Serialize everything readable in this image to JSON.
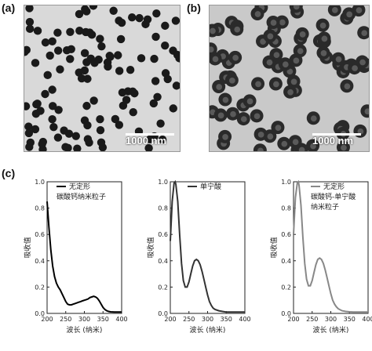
{
  "panels": {
    "a": {
      "label": "(a)",
      "scale_text": "1000 nm"
    },
    "b": {
      "label": "(b)",
      "scale_text": "1000 nm"
    },
    "c": {
      "label": "(c)"
    }
  },
  "chart_data": [
    {
      "type": "line",
      "xlabel": "波长 (纳米)",
      "ylabel": "吸收值",
      "xlim": [
        200,
        400
      ],
      "ylim": [
        0,
        1.0
      ],
      "xticks": [
        200,
        250,
        300,
        350,
        400
      ],
      "yticks": [
        0.0,
        0.2,
        0.4,
        0.6,
        0.8,
        1.0
      ],
      "series": [
        {
          "name": "无定形 碳酸钙纳米粒子",
          "color": "#000000",
          "x": [
            200,
            205,
            210,
            215,
            220,
            225,
            230,
            235,
            240,
            245,
            250,
            255,
            260,
            265,
            270,
            275,
            280,
            285,
            290,
            295,
            300,
            305,
            310,
            315,
            320,
            325,
            330,
            335,
            340,
            345,
            350,
            355,
            360,
            365,
            370,
            380,
            390,
            400
          ],
          "y": [
            0.85,
            0.65,
            0.48,
            0.36,
            0.28,
            0.23,
            0.2,
            0.18,
            0.15,
            0.12,
            0.09,
            0.07,
            0.065,
            0.065,
            0.07,
            0.075,
            0.08,
            0.085,
            0.09,
            0.095,
            0.1,
            0.105,
            0.11,
            0.12,
            0.125,
            0.13,
            0.125,
            0.115,
            0.095,
            0.07,
            0.045,
            0.03,
            0.02,
            0.015,
            0.012,
            0.01,
            0.01,
            0.01
          ]
        }
      ]
    },
    {
      "type": "line",
      "xlabel": "波长 (纳米)",
      "ylabel": "吸收值",
      "xlim": [
        200,
        400
      ],
      "ylim": [
        0,
        1.0
      ],
      "xticks": [
        200,
        250,
        300,
        350,
        400
      ],
      "yticks": [
        0.0,
        0.2,
        0.4,
        0.6,
        0.8,
        1.0
      ],
      "series": [
        {
          "name": "单宁酸",
          "color": "#333333",
          "x": [
            200,
            205,
            210,
            213,
            215,
            220,
            225,
            230,
            235,
            240,
            245,
            250,
            255,
            260,
            265,
            270,
            275,
            280,
            285,
            290,
            295,
            300,
            305,
            310,
            315,
            320,
            330,
            340,
            350,
            360,
            370,
            380,
            390,
            400
          ],
          "y": [
            0.55,
            0.85,
            0.99,
            1.0,
            0.98,
            0.85,
            0.6,
            0.38,
            0.25,
            0.2,
            0.2,
            0.24,
            0.3,
            0.36,
            0.4,
            0.41,
            0.4,
            0.37,
            0.32,
            0.26,
            0.2,
            0.14,
            0.09,
            0.06,
            0.04,
            0.03,
            0.02,
            0.015,
            0.01,
            0.01,
            0.01,
            0.01,
            0.01,
            0.01
          ]
        }
      ]
    },
    {
      "type": "line",
      "xlabel": "波长 (纳米)",
      "ylabel": "吸收值",
      "xlim": [
        200,
        400
      ],
      "ylim": [
        0,
        1.0
      ],
      "xticks": [
        200,
        250,
        300,
        350,
        400
      ],
      "yticks": [
        0.0,
        0.2,
        0.4,
        0.6,
        0.8,
        1.0
      ],
      "series": [
        {
          "name": "无定形 碳酸钙-单宁酸 纳米粒子",
          "color": "#888888",
          "x": [
            200,
            205,
            210,
            213,
            215,
            220,
            225,
            230,
            235,
            240,
            245,
            250,
            255,
            260,
            265,
            270,
            275,
            280,
            285,
            290,
            295,
            300,
            305,
            310,
            315,
            320,
            330,
            340,
            350,
            360,
            370,
            380,
            390,
            400
          ],
          "y": [
            0.6,
            0.88,
            0.99,
            1.0,
            0.97,
            0.82,
            0.58,
            0.38,
            0.26,
            0.21,
            0.21,
            0.25,
            0.31,
            0.37,
            0.41,
            0.42,
            0.41,
            0.38,
            0.33,
            0.27,
            0.21,
            0.15,
            0.1,
            0.07,
            0.05,
            0.035,
            0.02,
            0.015,
            0.012,
            0.01,
            0.01,
            0.01,
            0.01,
            0.01
          ]
        }
      ]
    }
  ],
  "legends": [
    {
      "lines": [
        "无定形",
        "碳酸钙纳米粒子"
      ]
    },
    {
      "lines": [
        "单宁酸"
      ]
    },
    {
      "lines": [
        "无定形",
        "碳酸钙-单宁酸",
        "纳米粒子"
      ]
    }
  ],
  "colors": {
    "tem_a_bg": "#d9d9d9",
    "tem_b_bg": "#c9c9c9",
    "particle": "#1a1a1a"
  }
}
